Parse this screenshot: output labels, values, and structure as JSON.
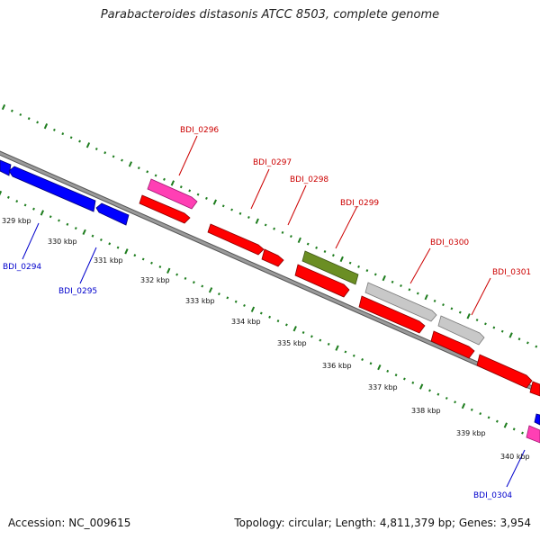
{
  "title": "Parabacteroides distasonis ATCC 8503, complete genome",
  "footer": {
    "accession": "Accession: NC_009615",
    "summary": "Topology: circular; Length: 4,811,379 bp; Genes: 3,954"
  },
  "colors": {
    "backbone": "#8a8a8a",
    "ticks": "#1e7d1e",
    "label_forward": "#cc0000",
    "label_reverse": "#0000cc",
    "gene_red": "#ff0000",
    "gene_blue": "#0000ff",
    "gene_pink": "#ff3fb4",
    "gene_green": "#6b8e23",
    "gene_gray": "#c8c8c8"
  },
  "ticks": [
    {
      "label": "329 kbp",
      "kbp": 329
    },
    {
      "label": "330 kbp",
      "kbp": 330
    },
    {
      "label": "331 kbp",
      "kbp": 331
    },
    {
      "label": "332 kbp",
      "kbp": 332
    },
    {
      "label": "333 kbp",
      "kbp": 333
    },
    {
      "label": "334 kbp",
      "kbp": 334
    },
    {
      "label": "335 kbp",
      "kbp": 335
    },
    {
      "label": "336 kbp",
      "kbp": 336
    },
    {
      "label": "337 kbp",
      "kbp": 337
    },
    {
      "label": "338 kbp",
      "kbp": 338
    },
    {
      "label": "339 kbp",
      "kbp": 339
    },
    {
      "label": "340 kbp",
      "kbp": 340
    }
  ],
  "gene_labels": [
    {
      "name": "BDI_0294",
      "strand": "reverse"
    },
    {
      "name": "BDI_0295",
      "strand": "reverse"
    },
    {
      "name": "BDI_0296",
      "strand": "forward"
    },
    {
      "name": "BDI_0297",
      "strand": "forward"
    },
    {
      "name": "BDI_0298",
      "strand": "forward"
    },
    {
      "name": "BDI_0299",
      "strand": "forward"
    },
    {
      "name": "BDI_0300",
      "strand": "forward"
    },
    {
      "name": "BDI_0301",
      "strand": "forward"
    },
    {
      "name": "BDI_0304",
      "strand": "reverse"
    }
  ]
}
